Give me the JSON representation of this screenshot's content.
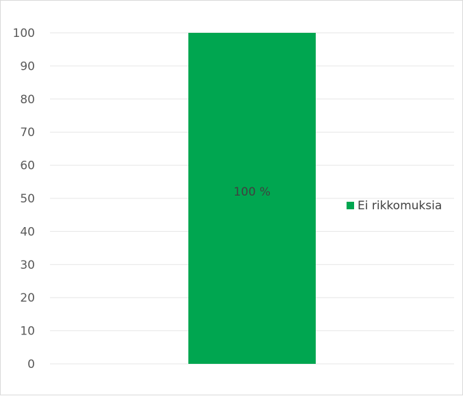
{
  "chart_data": {
    "type": "bar",
    "categories": [
      ""
    ],
    "series": [
      {
        "name": "Ei rikkomuksia",
        "values": [
          100
        ],
        "labels": [
          "100 %"
        ],
        "color": "#00a650"
      }
    ],
    "title": "",
    "xlabel": "",
    "ylabel": "",
    "ylim": [
      0,
      100
    ],
    "yticks": [
      0,
      10,
      20,
      30,
      40,
      50,
      60,
      70,
      80,
      90,
      100
    ],
    "grid": true,
    "legend": "right"
  },
  "colors": {
    "grid": "#e6e6e6",
    "frame": "#d9d9d9"
  }
}
